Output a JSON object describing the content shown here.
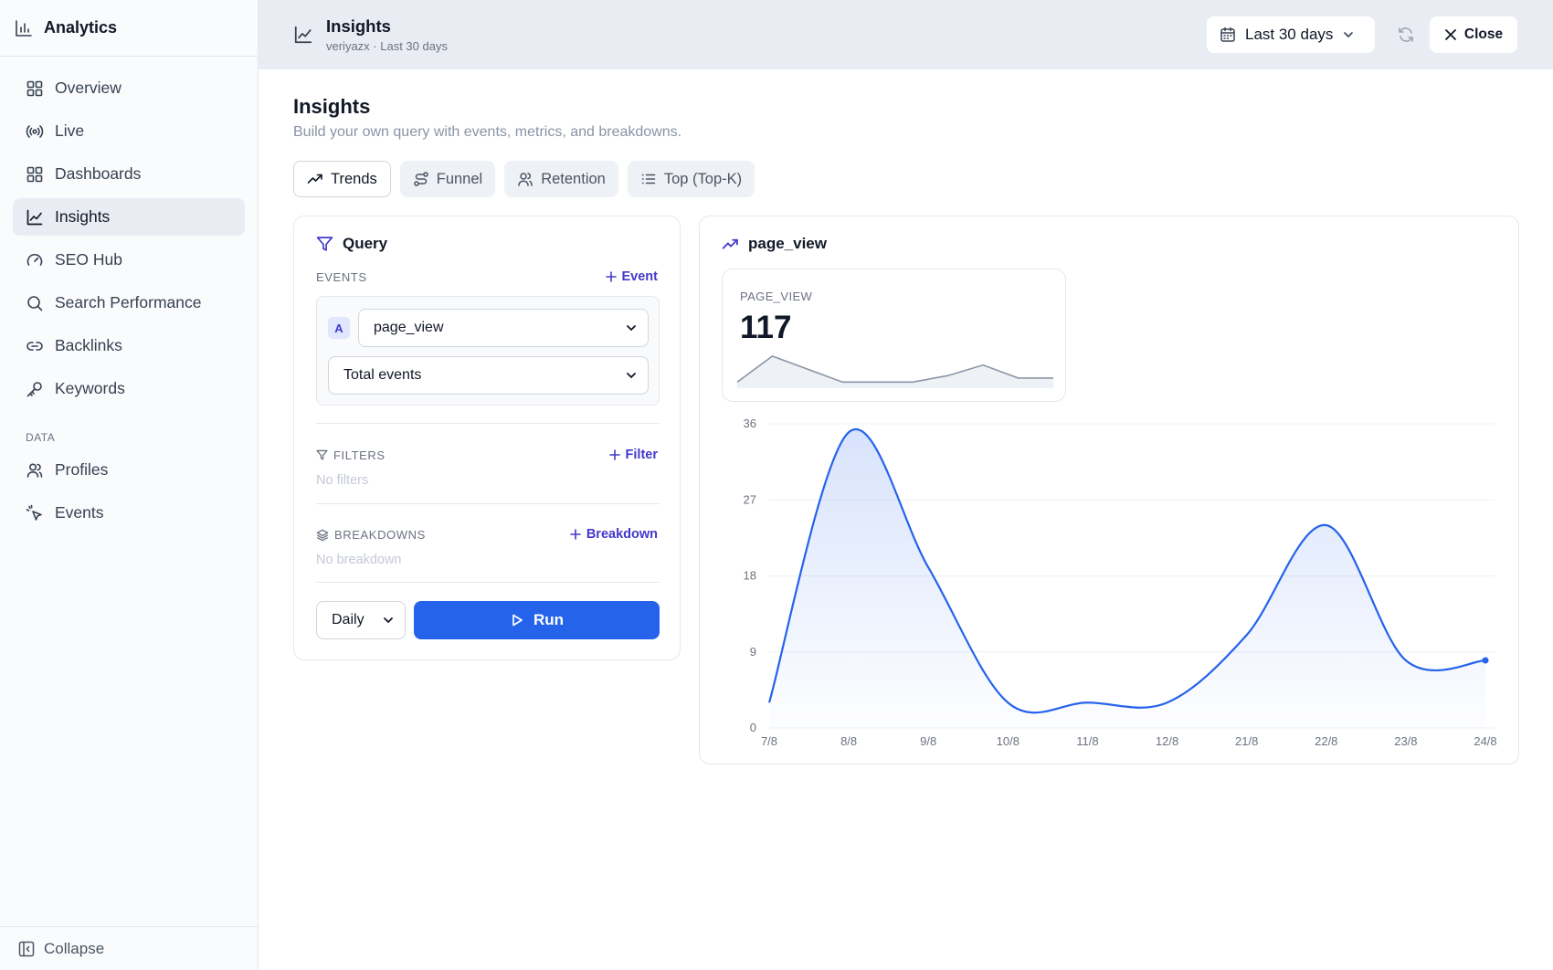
{
  "app": {
    "title": "Analytics"
  },
  "sidebar": {
    "items": [
      {
        "label": "Overview",
        "icon": "grid-icon"
      },
      {
        "label": "Live",
        "icon": "broadcast-icon"
      },
      {
        "label": "Dashboards",
        "icon": "dashboard-icon"
      },
      {
        "label": "Insights",
        "icon": "line-chart-icon",
        "active": true
      },
      {
        "label": "SEO Hub",
        "icon": "gauge-icon"
      },
      {
        "label": "Search Performance",
        "icon": "search-icon"
      },
      {
        "label": "Backlinks",
        "icon": "link-icon"
      },
      {
        "label": "Keywords",
        "icon": "key-icon"
      }
    ],
    "data_section": "DATA",
    "data_items": [
      {
        "label": "Profiles",
        "icon": "users-icon"
      },
      {
        "label": "Events",
        "icon": "cursor-click-icon"
      }
    ],
    "collapse_label": "Collapse"
  },
  "header": {
    "title": "Insights",
    "subtitle": "veriyazx · Last 30 days",
    "date_range": "Last 30 days",
    "close_label": "Close"
  },
  "page": {
    "title": "Insights",
    "description": "Build your own query with events, metrics, and breakdowns.",
    "tabs": [
      {
        "label": "Trends",
        "active": true
      },
      {
        "label": "Funnel"
      },
      {
        "label": "Retention"
      },
      {
        "label": "Top (Top-K)"
      }
    ]
  },
  "query": {
    "title": "Query",
    "events_label": "EVENTS",
    "add_event": "Event",
    "event_badge": "A",
    "event_name": "page_view",
    "metric": "Total events",
    "filters_label": "FILTERS",
    "add_filter": "Filter",
    "no_filters": "No filters",
    "breakdowns_label": "BREAKDOWNS",
    "add_breakdown": "Breakdown",
    "no_breakdown": "No breakdown",
    "interval": "Daily",
    "run_label": "Run"
  },
  "result": {
    "title": "page_view",
    "stat_label": "PAGE_VIEW",
    "stat_value": "117"
  },
  "colors": {
    "accent": "#2563eb",
    "link": "#4338ca",
    "sparkline": "#8b95a7"
  },
  "chart_data": {
    "type": "area",
    "categories": [
      "7/8",
      "8/8",
      "9/8",
      "10/8",
      "11/8",
      "12/8",
      "21/8",
      "22/8",
      "23/8",
      "24/8"
    ],
    "values": [
      3,
      35,
      19,
      3,
      3,
      3,
      11,
      24,
      8,
      8
    ],
    "yticks": [
      0,
      9,
      18,
      27,
      36
    ],
    "ylim": [
      0,
      36
    ],
    "grid": true
  }
}
